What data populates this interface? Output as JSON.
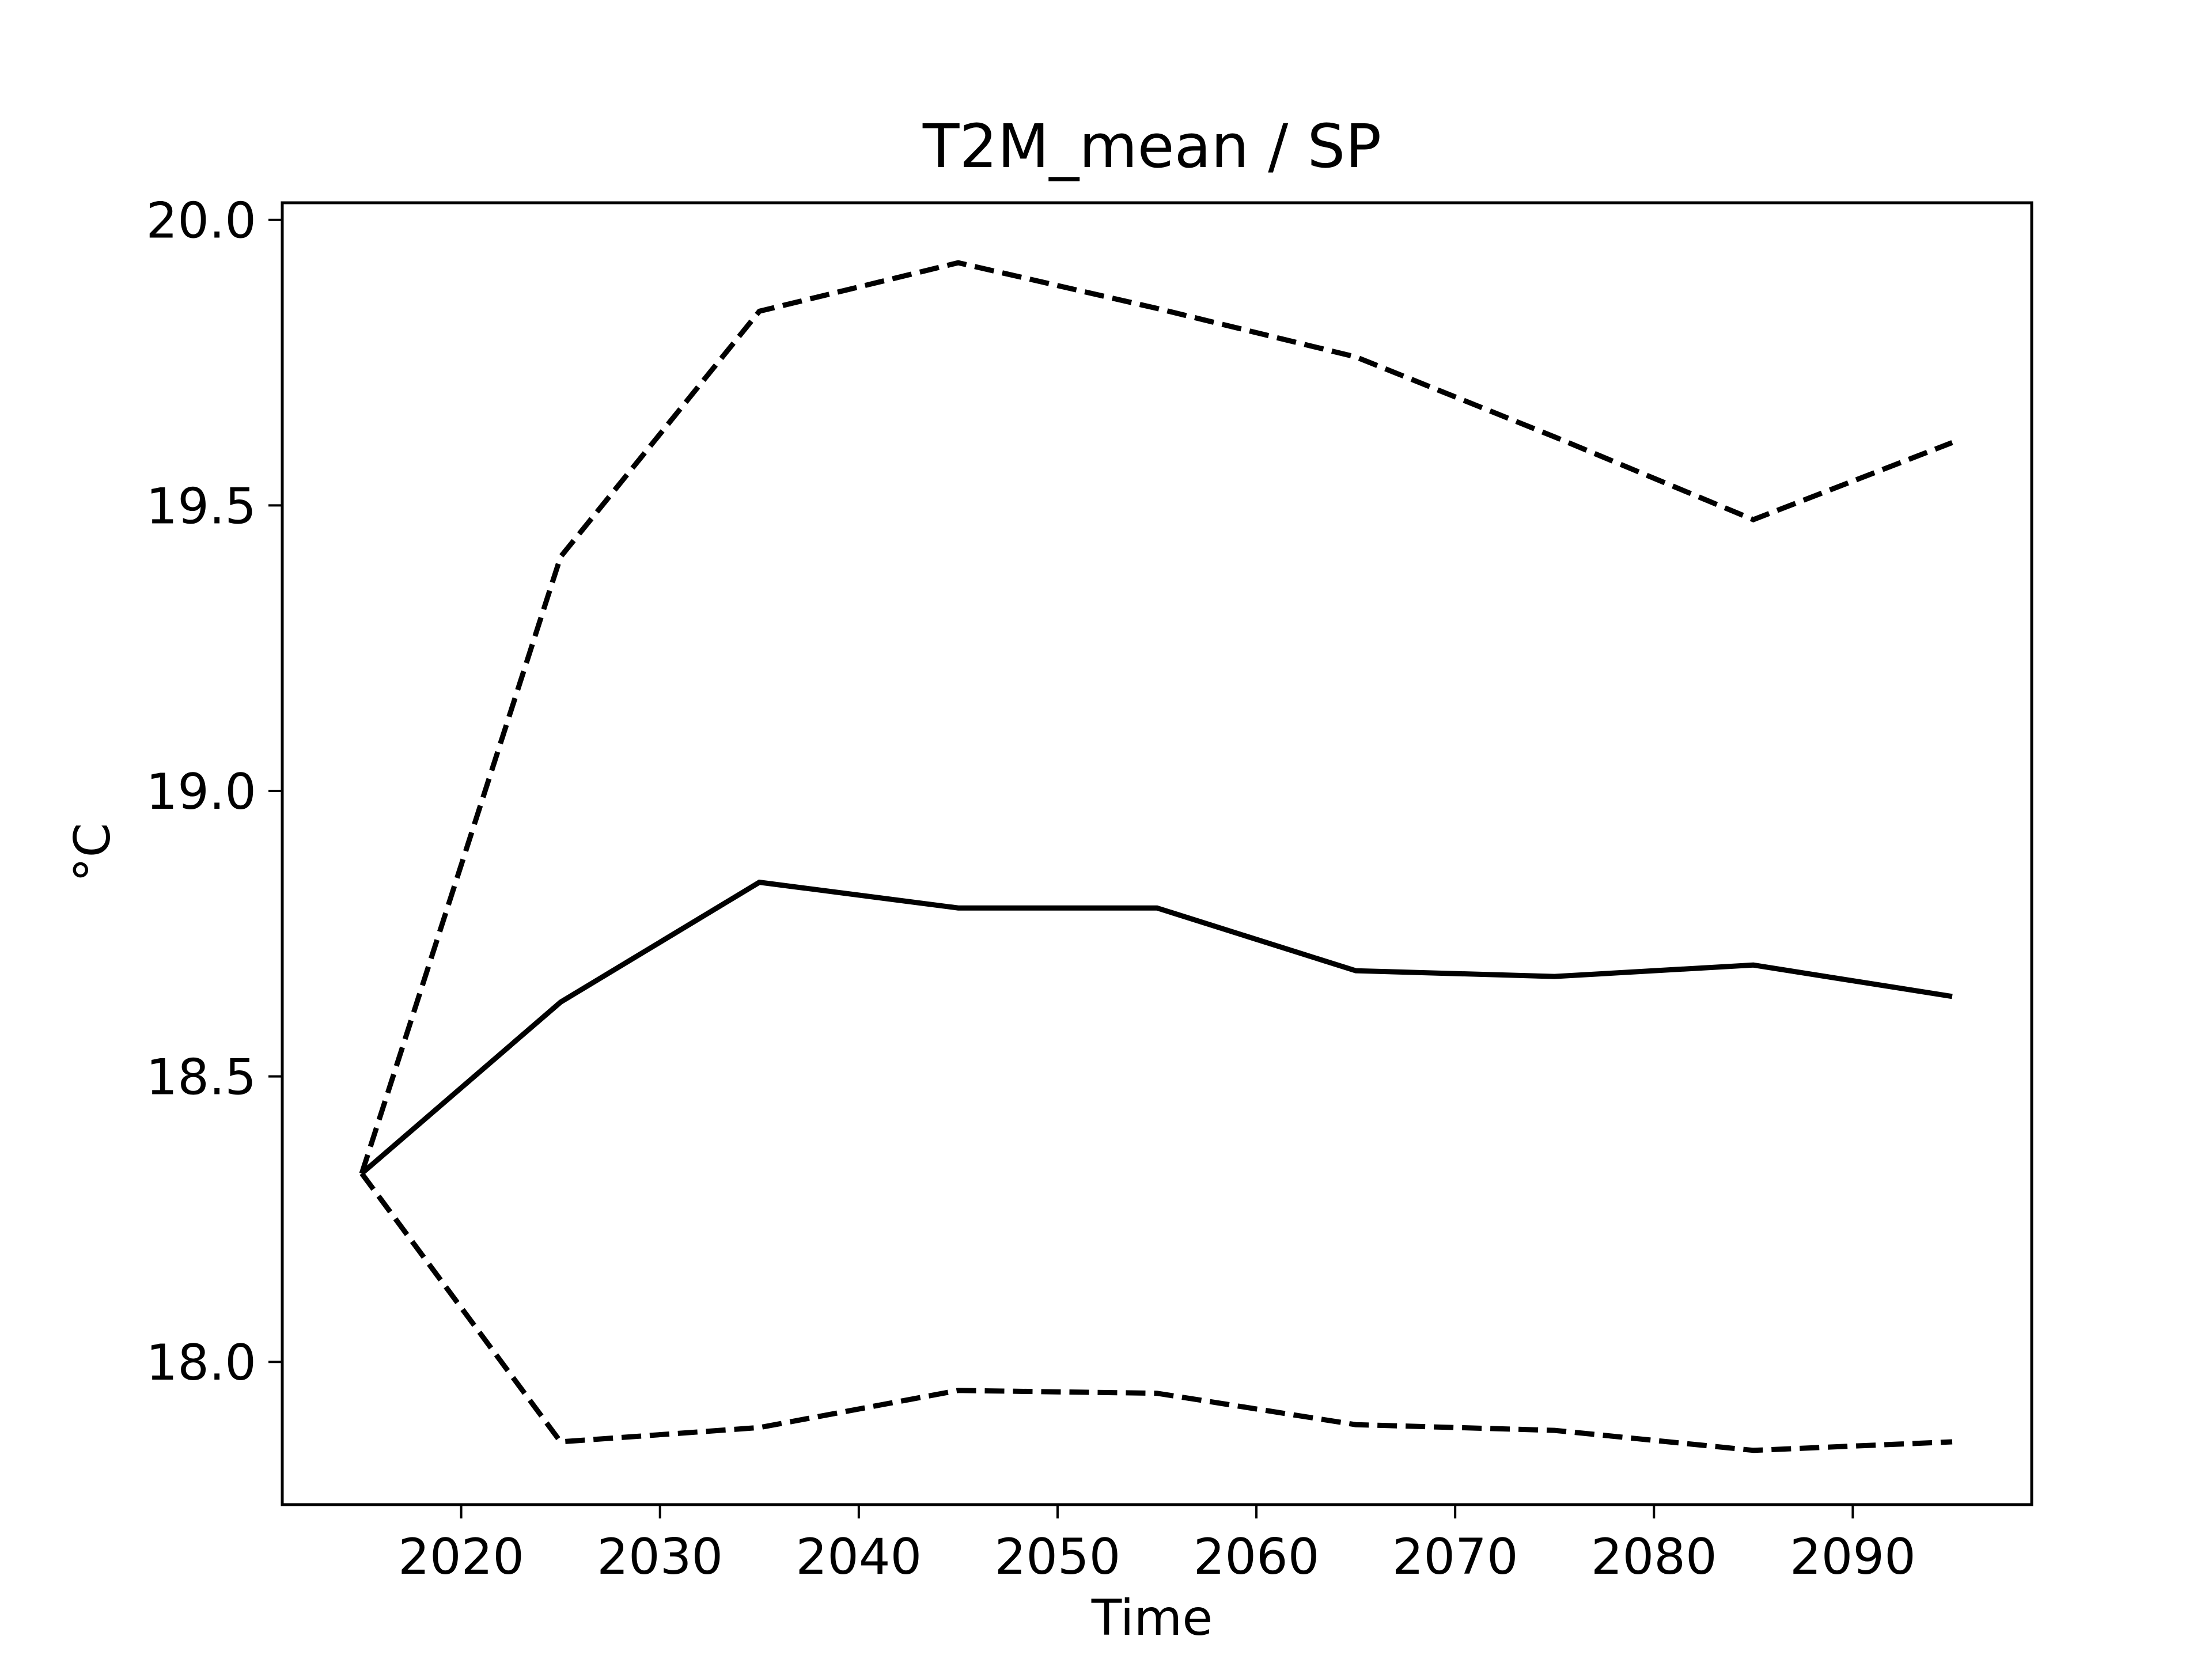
{
  "chart_data": {
    "type": "line",
    "title": "T2M_mean / SP",
    "xlabel": "Time",
    "ylabel": "°C",
    "xlim": [
      2011,
      2099
    ],
    "ylim": [
      17.75,
      20.03
    ],
    "xticks": [
      2020,
      2030,
      2040,
      2050,
      2060,
      2070,
      2080,
      2090
    ],
    "yticks": [
      18.0,
      18.5,
      19.0,
      19.5,
      20.0
    ],
    "xtick_labels": [
      "2020",
      "2030",
      "2040",
      "2050",
      "2060",
      "2070",
      "2080",
      "2090"
    ],
    "ytick_labels": [
      "18.0",
      "18.5",
      "19.0",
      "19.5",
      "20.0"
    ],
    "grid": false,
    "colors": {
      "series": "#000000",
      "frame": "#000000",
      "background": "#ffffff"
    },
    "series": [
      {
        "style": "solid",
        "x": [
          2015,
          2025,
          2035,
          2045,
          2055,
          2065,
          2075,
          2085,
          2095
        ],
        "y": [
          18.33,
          18.63,
          18.84,
          18.795,
          18.795,
          18.685,
          18.675,
          18.695,
          18.64
        ]
      },
      {
        "style": "dashed",
        "x": [
          2015,
          2025,
          2035,
          2045,
          2055,
          2065,
          2075,
          2085,
          2095
        ],
        "y": [
          18.33,
          19.41,
          19.84,
          19.925,
          19.845,
          19.76,
          19.62,
          19.475,
          19.61
        ]
      },
      {
        "style": "dashed",
        "x": [
          2015,
          2025,
          2035,
          2045,
          2055,
          2065,
          2075,
          2085,
          2095
        ],
        "y": [
          18.33,
          17.86,
          17.885,
          17.95,
          17.945,
          17.89,
          17.88,
          17.845,
          17.86
        ]
      }
    ]
  }
}
